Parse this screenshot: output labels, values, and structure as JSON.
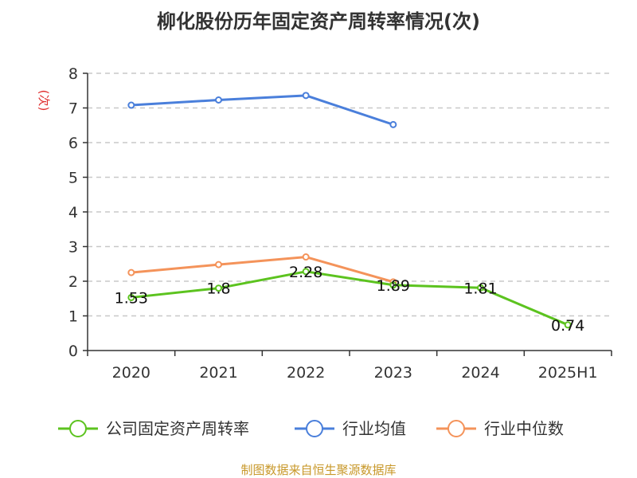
{
  "chart_data": {
    "type": "line",
    "title": "柳化股份历年固定资产周转率情况(次)",
    "ylabel": "(次)",
    "xlabel": "",
    "categories": [
      "2020",
      "2021",
      "2022",
      "2023",
      "2024",
      "2025H1"
    ],
    "ylim": [
      0,
      8
    ],
    "yticks": [
      0,
      1,
      2,
      3,
      4,
      5,
      6,
      7,
      8
    ],
    "grid": true,
    "legend_position": "bottom",
    "series": [
      {
        "name": "公司固定资产周转率",
        "color": "#5cc31f",
        "values": [
          1.53,
          1.8,
          2.28,
          1.89,
          1.81,
          0.74
        ],
        "labels": [
          "1.53",
          "1.8",
          "2.28",
          "1.89",
          "1.81",
          "0.74"
        ]
      },
      {
        "name": "行业均值",
        "color": "#4a7fdb",
        "values": [
          7.08,
          7.23,
          7.36,
          6.52,
          null,
          null
        ],
        "labels": null
      },
      {
        "name": "行业中位数",
        "color": "#f4935a",
        "values": [
          2.25,
          2.48,
          2.7,
          1.98,
          null,
          null
        ],
        "labels": null
      }
    ],
    "source": "制图数据来自恒生聚源数据库"
  }
}
